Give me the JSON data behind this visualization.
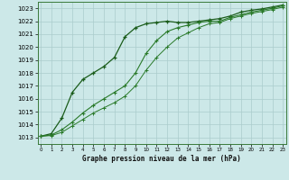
{
  "title": "Graphe pression niveau de la mer (hPa)",
  "xlabel_hours": [
    0,
    1,
    2,
    3,
    4,
    5,
    6,
    7,
    8,
    9,
    10,
    11,
    12,
    13,
    14,
    15,
    16,
    17,
    18,
    19,
    20,
    21,
    22,
    23
  ],
  "ylim": [
    1012.5,
    1023.5
  ],
  "yticks": [
    1013,
    1014,
    1015,
    1016,
    1017,
    1018,
    1019,
    1020,
    1021,
    1022,
    1023
  ],
  "xlim": [
    -0.3,
    23.3
  ],
  "bg_color": "#cce8e8",
  "grid_color": "#aacccc",
  "line_color1": "#1a5c1a",
  "line_color2": "#2a7a2a",
  "line_color3": "#2a7a2a",
  "series1": [
    1013.1,
    1013.3,
    1014.5,
    1016.5,
    1017.5,
    1018.0,
    1018.5,
    1019.2,
    1020.8,
    1021.5,
    1021.8,
    1021.9,
    1022.0,
    1021.9,
    1021.9,
    1022.0,
    1022.1,
    1022.2,
    1022.4,
    1022.7,
    1022.85,
    1022.95,
    1023.1,
    1023.25
  ],
  "series2": [
    1013.1,
    1013.2,
    1013.6,
    1014.2,
    1014.9,
    1015.5,
    1016.0,
    1016.5,
    1017.0,
    1018.0,
    1019.5,
    1020.5,
    1021.2,
    1021.5,
    1021.7,
    1021.9,
    1022.0,
    1022.0,
    1022.3,
    1022.5,
    1022.7,
    1022.85,
    1023.0,
    1023.2
  ],
  "series3": [
    1013.1,
    1013.15,
    1013.4,
    1013.9,
    1014.4,
    1014.9,
    1015.3,
    1015.7,
    1016.2,
    1017.0,
    1018.2,
    1019.2,
    1020.0,
    1020.7,
    1021.1,
    1021.5,
    1021.8,
    1021.9,
    1022.2,
    1022.4,
    1022.6,
    1022.75,
    1022.9,
    1023.1
  ]
}
